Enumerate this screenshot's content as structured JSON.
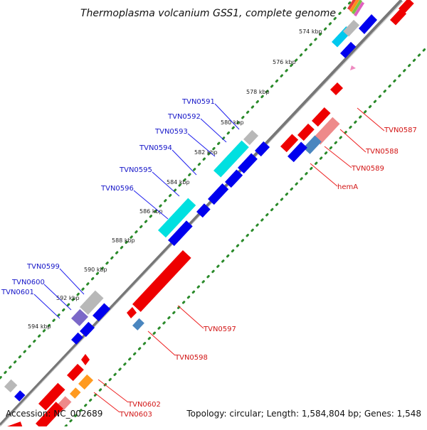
{
  "header": {
    "title": "Thermoplasma volcanium GSS1, complete genome"
  },
  "footer": {
    "accession": "Accession: NC_002689",
    "summary": "Topology: circular; Length: 1,584,804 bp; Genes: 1,548"
  },
  "colors": {
    "forward_gene": "#0000ee",
    "reverse_gene": "#ee0000",
    "backbone": "#8a8a8a",
    "gc_dots": "#2a8a2a",
    "highlight_cyan": "#00e0e0",
    "highlight_blue": "#4a86bf",
    "highlight_orange": "#ff9a20",
    "highlight_purple": "#7b68c8",
    "highlight_grey": "#b8b8b8",
    "highlight_pink": "#ee8a8a"
  },
  "scale_ticks": [
    "574 kbp",
    "576 kbp",
    "578 kbp",
    "580 kbp",
    "582 kbp",
    "584 kbp",
    "586 kbp",
    "588 kbp",
    "590 kbp",
    "592 kbp",
    "594 kbp"
  ],
  "forward_labels": [
    "TVN0591",
    "TVN0592",
    "TVN0593",
    "TVN0594",
    "TVN0595",
    "TVN0596",
    "TVN0599",
    "TVN0600",
    "TVN0601"
  ],
  "reverse_labels": [
    "TVN0587",
    "TVN0588",
    "TVN0589",
    "hemA",
    "TVN0597",
    "TVN0598",
    "TVN0602",
    "TVN0603"
  ]
}
